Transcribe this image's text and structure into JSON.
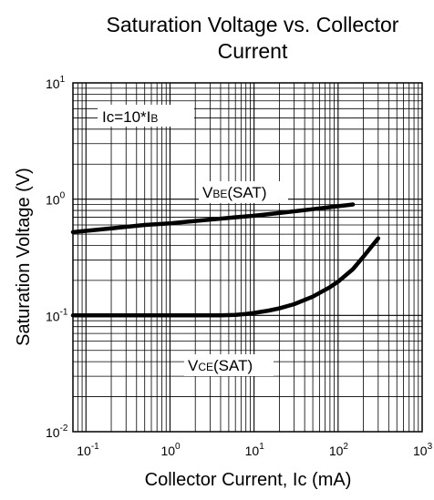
{
  "chart_data": {
    "type": "line",
    "title_line1": "Saturation Voltage vs. Collector",
    "title_line2": "Current",
    "xlabel": "Collector Current, Ic (mA)",
    "ylabel": "Saturation Voltage (V)",
    "x_scale": "log",
    "y_scale": "log",
    "xlim": [
      0.07,
      1000
    ],
    "ylim": [
      0.01,
      10
    ],
    "grid": true,
    "x_ticks": [
      {
        "base": "10",
        "exp": "-1",
        "value": 0.1
      },
      {
        "base": "10",
        "exp": "0",
        "value": 1
      },
      {
        "base": "10",
        "exp": "1",
        "value": 10
      },
      {
        "base": "10",
        "exp": "2",
        "value": 100
      },
      {
        "base": "10",
        "exp": "3",
        "value": 1000
      }
    ],
    "y_ticks": [
      {
        "base": "10",
        "exp": "1",
        "value": 10
      },
      {
        "base": "10",
        "exp": "0",
        "value": 1
      },
      {
        "base": "10",
        "exp": "-1",
        "value": 0.1
      },
      {
        "base": "10",
        "exp": "-2",
        "value": 0.01
      }
    ],
    "condition": {
      "main": "Ic=10*I",
      "sub": "B"
    },
    "series": [
      {
        "label_main": "V",
        "label_sub": "BE",
        "label_tail": "(SAT)",
        "color": "#000000",
        "x": [
          0.07,
          0.2,
          0.5,
          1,
          2,
          5,
          10,
          20,
          50,
          100,
          150
        ],
        "y": [
          0.52,
          0.56,
          0.6,
          0.62,
          0.65,
          0.69,
          0.72,
          0.76,
          0.82,
          0.87,
          0.9
        ]
      },
      {
        "label_main": "V",
        "label_sub": "CE",
        "label_tail": "(SAT)",
        "color": "#000000",
        "x": [
          0.07,
          0.2,
          0.5,
          1,
          2,
          4,
          6,
          8,
          10,
          15,
          20,
          30,
          50,
          80,
          100,
          150,
          200,
          300
        ],
        "y": [
          0.1,
          0.1,
          0.1,
          0.1,
          0.1,
          0.1,
          0.101,
          0.103,
          0.105,
          0.11,
          0.115,
          0.125,
          0.145,
          0.175,
          0.195,
          0.25,
          0.32,
          0.46
        ]
      }
    ]
  }
}
